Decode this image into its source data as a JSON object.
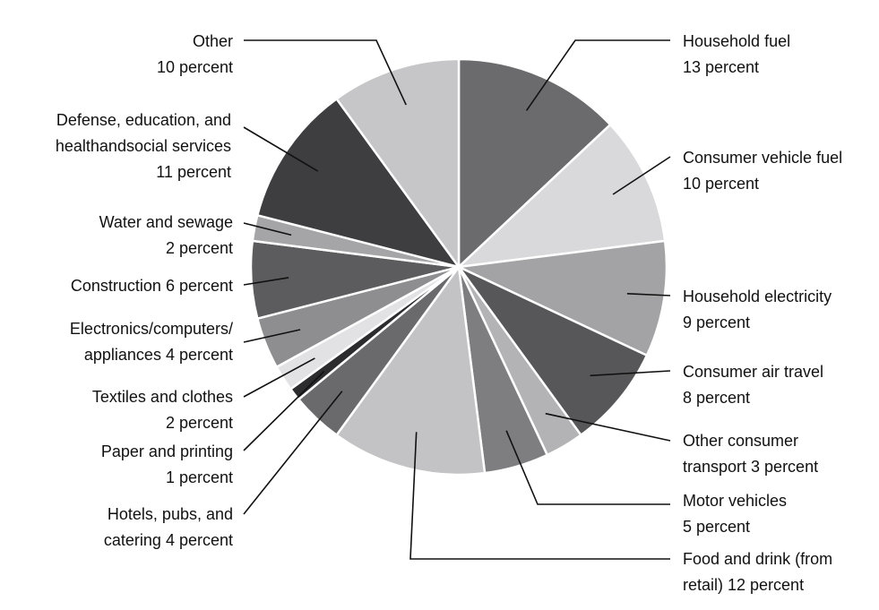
{
  "chart_data": {
    "type": "pie",
    "title": "",
    "start_angle_deg": 0,
    "direction": "clockwise",
    "slices": [
      {
        "name": "Household fuel",
        "value": 13,
        "color": "#6b6b6d",
        "label_lines": [
          "Household fuel",
          "13 percent"
        ]
      },
      {
        "name": "Consumer vehicle fuel",
        "value": 10,
        "color": "#d9d9db",
        "label_lines": [
          "Consumer vehicle fuel",
          "10 percent"
        ]
      },
      {
        "name": "Household electricity",
        "value": 9,
        "color": "#a3a3a5",
        "label_lines": [
          "Household electricity",
          "9 percent"
        ]
      },
      {
        "name": "Consumer air travel",
        "value": 8,
        "color": "#575759",
        "label_lines": [
          "Consumer air travel",
          "8 percent"
        ]
      },
      {
        "name": "Other consumer transport",
        "value": 3,
        "color": "#b3b3b5",
        "label_lines": [
          "Other consumer",
          "transport 3 percent"
        ]
      },
      {
        "name": "Motor vehicles",
        "value": 5,
        "color": "#7e7e80",
        "label_lines": [
          "Motor vehicles",
          "5 percent"
        ]
      },
      {
        "name": "Food and drink (from retail)",
        "value": 12,
        "color": "#c3c3c5",
        "label_lines": [
          "Food and drink (from",
          "retail) 12 percent"
        ]
      },
      {
        "name": "Hotels, pubs, and catering",
        "value": 4,
        "color": "#6a6a6c",
        "label_lines": [
          "Hotels, pubs, and",
          "catering 4 percent"
        ]
      },
      {
        "name": "Paper and printing",
        "value": 1,
        "color": "#2c2c2e",
        "label_lines": [
          "Paper and printing",
          "1 percent"
        ]
      },
      {
        "name": "Textiles and clothes",
        "value": 2,
        "color": "#e2e2e4",
        "label_lines": [
          "Textiles and clothes",
          "2 percent"
        ]
      },
      {
        "name": "Electronics/computers/appliances",
        "value": 4,
        "color": "#8e8e90",
        "label_lines": [
          "Electronics/computers/",
          "appliances 4 percent"
        ]
      },
      {
        "name": "Construction",
        "value": 6,
        "color": "#5c5c5e",
        "label_lines": [
          "Construction 6 percent"
        ]
      },
      {
        "name": "Water and sewage",
        "value": 2,
        "color": "#a5a5a7",
        "label_lines": [
          "Water and sewage",
          "2 percent"
        ]
      },
      {
        "name": "Defense, education, and health and social services",
        "value": 11,
        "color": "#3e3e40",
        "label_lines": [
          "Defense, education, and",
          "healthandsocial services",
          "11 percent"
        ]
      },
      {
        "name": "Other",
        "value": 10,
        "color": "#c6c6c8",
        "label_lines": [
          "Other",
          "10 percent"
        ]
      }
    ]
  }
}
